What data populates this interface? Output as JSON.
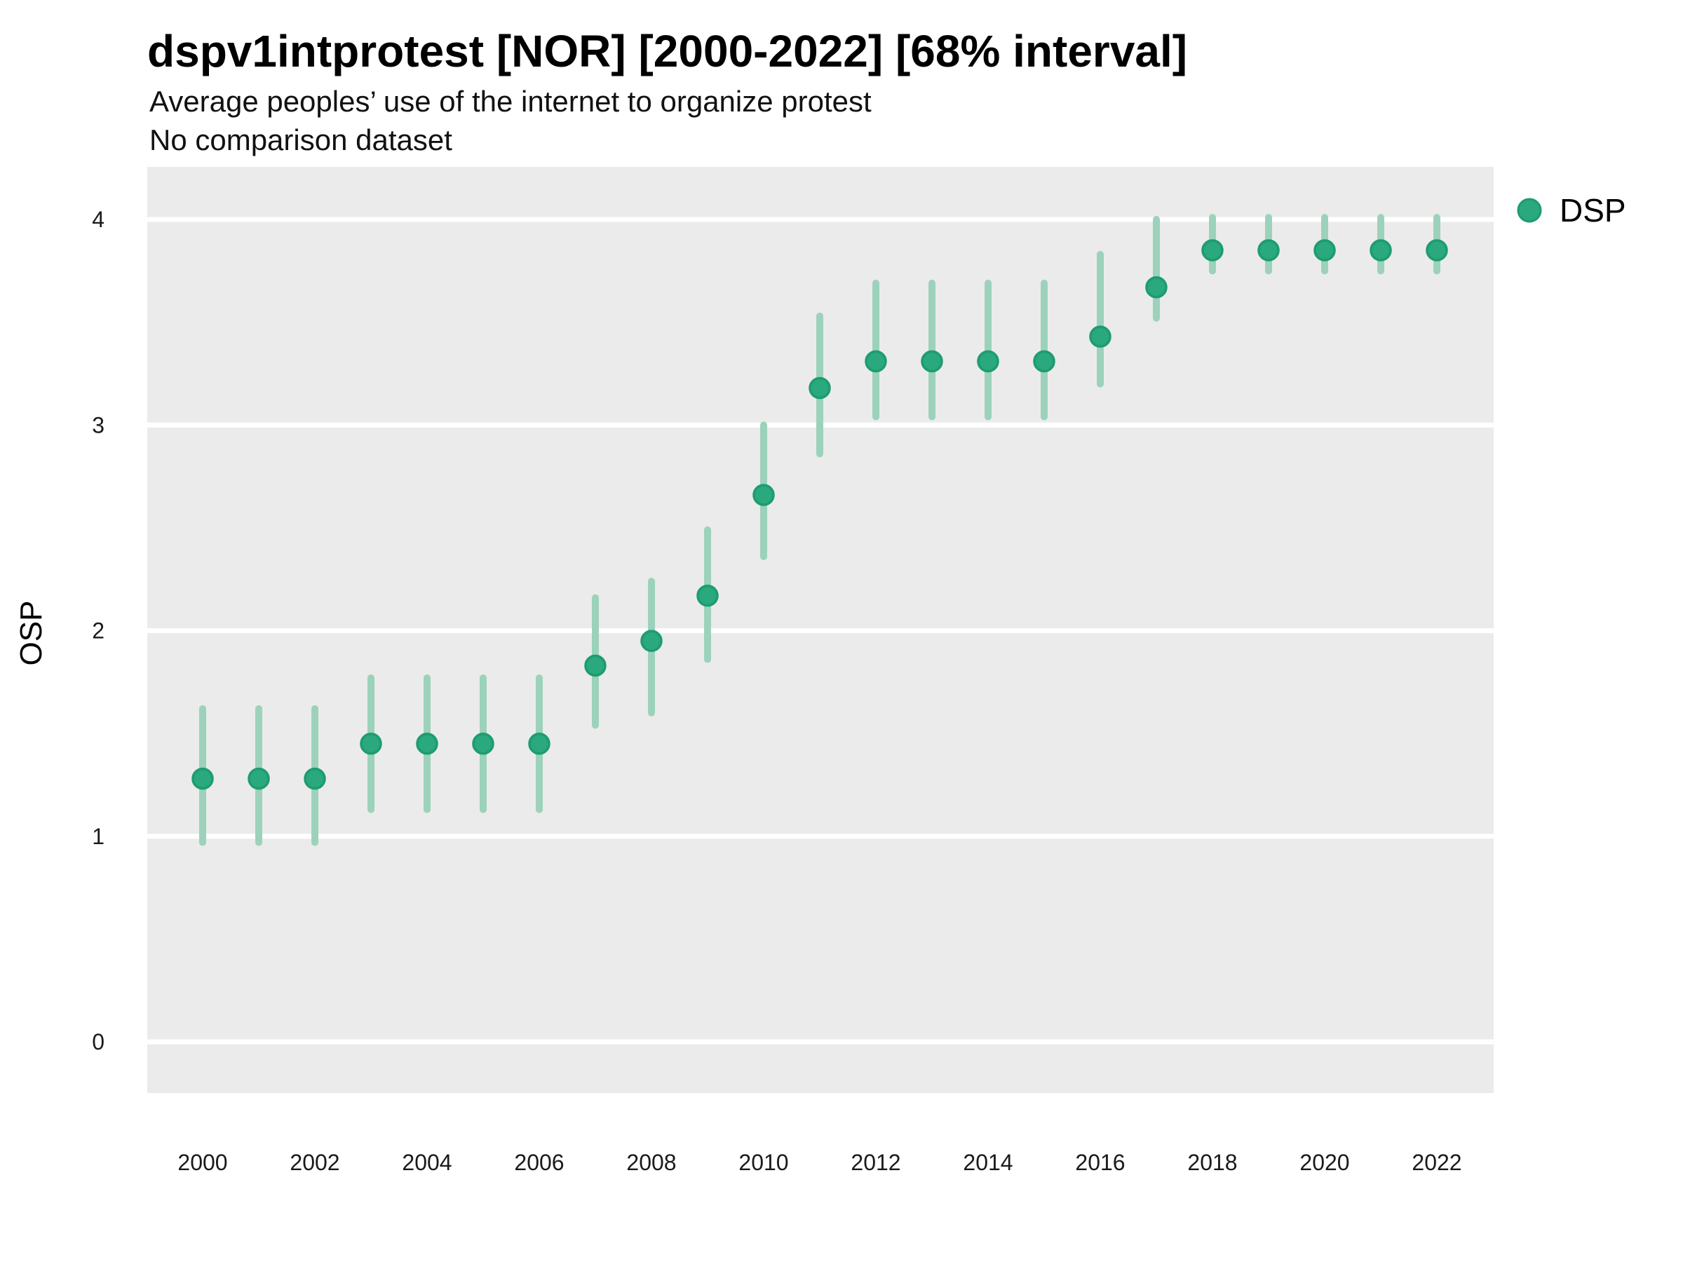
{
  "header": {
    "title": "dspv1intprotest [NOR] [2000-2022] [68% interval]",
    "subtitle": "Average peoples’ use of the internet to organize protest",
    "note": "No comparison dataset"
  },
  "y_axis": {
    "label": "OSP",
    "ticks": [
      0,
      1,
      2,
      3,
      4
    ]
  },
  "x_axis": {
    "label": "",
    "ticks": [
      2000,
      2002,
      2004,
      2006,
      2008,
      2010,
      2012,
      2014,
      2016,
      2018,
      2020,
      2022
    ]
  },
  "legend": {
    "items": [
      {
        "label": "DSP",
        "swatch": "circle"
      }
    ]
  },
  "colors": {
    "point_fill": "#2aa87e",
    "point_stroke": "#1d9c70",
    "interval_bar": "#9cd2bb",
    "panel_background": "#ebebeb",
    "gridline": "#ffffff",
    "text": "#1a1a1a"
  },
  "chart_data": {
    "type": "scatter",
    "title": "dspv1intprotest [NOR] [2000-2022] [68% interval]",
    "subtitle": "Average peoples’ use of the internet to organize protest",
    "note": "No comparison dataset",
    "xlabel": "",
    "ylabel": "OSP",
    "xlim": [
      1999,
      2023
    ],
    "ylim": [
      -0.25,
      4.26
    ],
    "grid": "major-horizontal-only",
    "legend_position": "right-top",
    "interval": "68%",
    "series": [
      {
        "name": "DSP",
        "points": [
          {
            "year": 2000,
            "est": 1.28,
            "lo": 0.97,
            "hi": 1.62
          },
          {
            "year": 2001,
            "est": 1.28,
            "lo": 0.97,
            "hi": 1.62
          },
          {
            "year": 2002,
            "est": 1.28,
            "lo": 0.97,
            "hi": 1.62
          },
          {
            "year": 2003,
            "est": 1.45,
            "lo": 1.13,
            "hi": 1.77
          },
          {
            "year": 2004,
            "est": 1.45,
            "lo": 1.13,
            "hi": 1.77
          },
          {
            "year": 2005,
            "est": 1.45,
            "lo": 1.13,
            "hi": 1.77
          },
          {
            "year": 2006,
            "est": 1.45,
            "lo": 1.13,
            "hi": 1.77
          },
          {
            "year": 2007,
            "est": 1.83,
            "lo": 1.54,
            "hi": 2.16
          },
          {
            "year": 2008,
            "est": 1.95,
            "lo": 1.6,
            "hi": 2.24
          },
          {
            "year": 2009,
            "est": 2.17,
            "lo": 1.86,
            "hi": 2.49
          },
          {
            "year": 2010,
            "est": 2.66,
            "lo": 2.36,
            "hi": 3.0
          },
          {
            "year": 2011,
            "est": 3.18,
            "lo": 2.86,
            "hi": 3.53
          },
          {
            "year": 2012,
            "est": 3.31,
            "lo": 3.04,
            "hi": 3.69
          },
          {
            "year": 2013,
            "est": 3.31,
            "lo": 3.04,
            "hi": 3.69
          },
          {
            "year": 2014,
            "est": 3.31,
            "lo": 3.04,
            "hi": 3.69
          },
          {
            "year": 2015,
            "est": 3.31,
            "lo": 3.04,
            "hi": 3.69
          },
          {
            "year": 2016,
            "est": 3.43,
            "lo": 3.2,
            "hi": 3.83
          },
          {
            "year": 2017,
            "est": 3.67,
            "lo": 3.52,
            "hi": 4.0
          },
          {
            "year": 2018,
            "est": 3.85,
            "lo": 3.75,
            "hi": 4.01
          },
          {
            "year": 2019,
            "est": 3.85,
            "lo": 3.75,
            "hi": 4.01
          },
          {
            "year": 2020,
            "est": 3.85,
            "lo": 3.75,
            "hi": 4.01
          },
          {
            "year": 2021,
            "est": 3.85,
            "lo": 3.75,
            "hi": 4.01
          },
          {
            "year": 2022,
            "est": 3.85,
            "lo": 3.75,
            "hi": 4.01
          }
        ]
      }
    ]
  }
}
